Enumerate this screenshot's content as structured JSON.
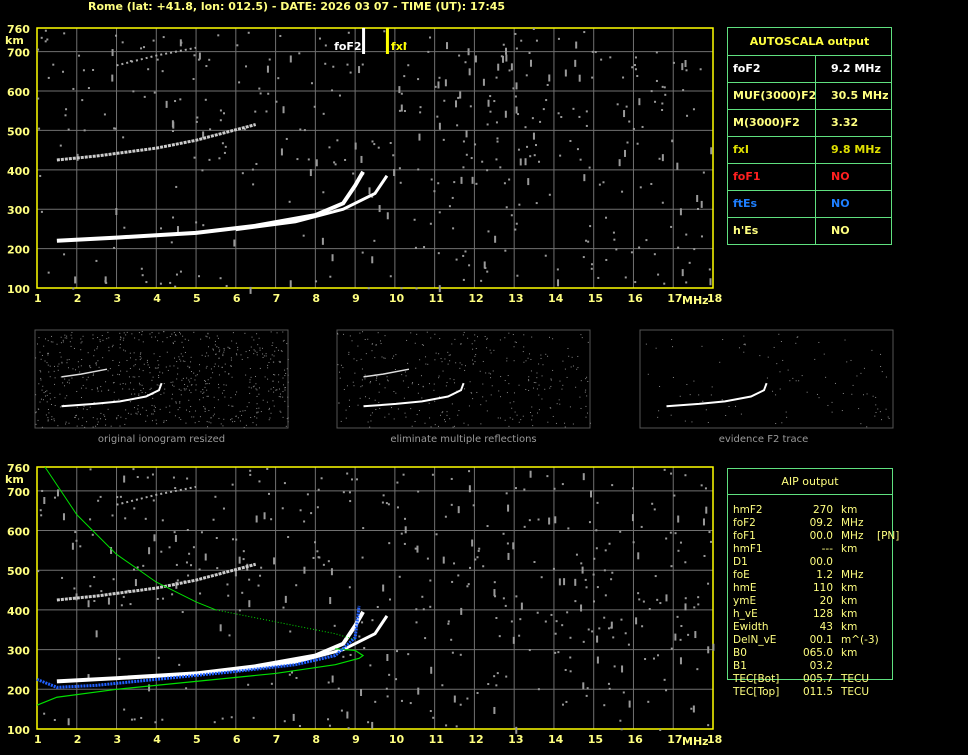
{
  "header": {
    "title": "Rome (lat: +41.8, lon: 012.5) - DATE: 2026 03 07 - TIME (UT): 17:45"
  },
  "plot": {
    "y_ticks": [
      760,
      700,
      600,
      500,
      400,
      300,
      200,
      100
    ],
    "y_unit": "km",
    "x_ticks": [
      1,
      2,
      3,
      4,
      5,
      6,
      7,
      8,
      9,
      10,
      11,
      12,
      13,
      14,
      15,
      16,
      17,
      18
    ],
    "x_unit": "MHz",
    "foF2_label": "foF2",
    "fxI_label": "fxI",
    "foF2": 9.2,
    "fxI": 9.8
  },
  "colors": {
    "axis": "#ffff00",
    "grid": "#707070",
    "table_border": "#5fe07f",
    "o_trace": "#ffffff",
    "profile": "#00e000",
    "blue_trace": "#2060ff",
    "foF1": "#ff2020",
    "ftEs": "#1e7fff"
  },
  "autoscala": {
    "title": "AUTOSCALA output",
    "rows": [
      {
        "key": "foF2",
        "value": "9.2 MHz",
        "color": "#ffffff"
      },
      {
        "key": "MUF(3000)F2",
        "value": "30.5 MHz",
        "color": "#ffff80"
      },
      {
        "key": "M(3000)F2",
        "value": "3.32",
        "color": "#ffff80"
      },
      {
        "key": "fxI",
        "value": "9.8 MHz",
        "color": "#e0e000"
      },
      {
        "key": "foF1",
        "value": "NO",
        "color": "#ff2020"
      },
      {
        "key": "ftEs",
        "value": "NO",
        "color": "#1e7fff"
      },
      {
        "key": "h'Es",
        "value": "NO",
        "color": "#ffff80"
      }
    ]
  },
  "captions": [
    "original ionogram resized",
    "eliminate multiple reflections",
    "evidence F2 trace"
  ],
  "aip": {
    "title": "AIP output",
    "rows": [
      [
        "hmF2",
        "270",
        "km",
        ""
      ],
      [
        "foF2",
        "09.2",
        "MHz",
        ""
      ],
      [
        "foF1",
        "00.0",
        "MHz",
        "[PN]"
      ],
      [
        "hmF1",
        "---",
        "km",
        ""
      ],
      [
        "D1",
        "00.0",
        "",
        ""
      ],
      [
        "foE",
        "1.2",
        "MHz",
        ""
      ],
      [
        "hmE",
        "110",
        "km",
        ""
      ],
      [
        "ymE",
        "20",
        "km",
        ""
      ],
      [
        "h_vE",
        "128",
        "km",
        ""
      ],
      [
        "Ewidth",
        "43",
        "km",
        ""
      ],
      [
        "DelN_vE",
        "00.1",
        "m^(-3)",
        ""
      ],
      [
        "B0",
        "065.0",
        "km",
        ""
      ],
      [
        "B1",
        "03.2",
        "",
        ""
      ],
      [
        "TEC[Bot]",
        "005.7",
        "TECU",
        ""
      ],
      [
        "TEC[Top]",
        "011.5",
        "TECU",
        ""
      ]
    ]
  }
}
